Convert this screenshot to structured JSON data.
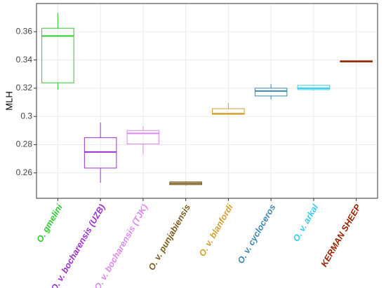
{
  "chart_data": {
    "type": "box",
    "y_label": "MLH",
    "categories": [
      "O. gmelini",
      "O. v. bocharensis (UZB)",
      "O. v. bocharensis (TJK)",
      "O. v. punjabiensis",
      "O. v. blanfordi",
      "O. v. cycloceros",
      "O. v. arkal",
      "KERMAN SHEEP"
    ],
    "colors": [
      "#2ecc2e",
      "#9b30d0",
      "#dd88ee",
      "#7a5a1a",
      "#d4a030",
      "#3a88b0",
      "#33ccee",
      "#992200"
    ],
    "whislo": [
      0.319,
      0.253,
      0.273,
      0.2512,
      0.3015,
      0.312,
      0.3185,
      0.3384
    ],
    "q1": [
      0.3238,
      0.2634,
      0.2805,
      0.2516,
      0.3015,
      0.3145,
      0.319,
      0.3386
    ],
    "med": [
      0.357,
      0.2748,
      0.288,
      0.2526,
      0.302,
      0.318,
      0.32,
      0.339
    ],
    "q3": [
      0.3625,
      0.285,
      0.29,
      0.2536,
      0.3055,
      0.32,
      0.322,
      0.3394
    ],
    "whishi": [
      0.3734,
      0.2957,
      0.293,
      0.254,
      0.3095,
      0.323,
      0.3225,
      0.3396
    ],
    "ylim": [
      0.242,
      0.38
    ],
    "yticks": [
      0.26,
      0.28,
      0.3,
      0.32,
      0.34,
      0.36
    ],
    "grid": true
  }
}
